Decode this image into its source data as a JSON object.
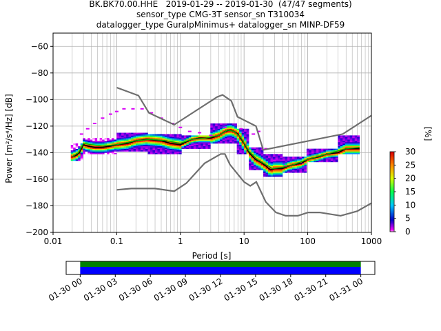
{
  "titles": [
    "BK.BK70.00.HHE   2019-01-29 -- 2019-01-30  (47/47 segments)",
    "sensor_type CMG-3T sensor_sn T310034",
    "datalogger_type GuralpMinimus+ datalogger_sn MINP-DF59"
  ],
  "colors": {
    "model": "#6e6e6e",
    "mode": "#000000",
    "mean": "#00b000",
    "grid": "#b0b0b0",
    "avail_good": "#008000",
    "avail_data": "#0000ff"
  },
  "chart_data": [
    {
      "type": "heatmap",
      "xlabel": "Period [s]",
      "ylabel": "Power [m²/s⁴/Hz] [dB]",
      "x_scale": "log",
      "xlim": [
        0.01,
        1000
      ],
      "ylim": [
        -200,
        -50
      ],
      "xticks": [
        {
          "v": 0.01,
          "label": "0.01"
        },
        {
          "v": 0.1,
          "label": "0.1"
        },
        {
          "v": 1,
          "label": "1"
        },
        {
          "v": 10,
          "label": "10"
        },
        {
          "v": 100,
          "label": "100"
        },
        {
          "v": 1000,
          "label": "1000"
        }
      ],
      "yticks": [
        {
          "v": -60,
          "label": "−60"
        },
        {
          "v": -80,
          "label": "−80"
        },
        {
          "v": -100,
          "label": "−100"
        },
        {
          "v": -120,
          "label": "−120"
        },
        {
          "v": -140,
          "label": "−140"
        },
        {
          "v": -160,
          "label": "−160"
        },
        {
          "v": -180,
          "label": "−180"
        },
        {
          "v": -200,
          "label": "−200"
        }
      ],
      "grid": true,
      "colorbar": {
        "label": "[%]",
        "range": [
          0,
          30
        ],
        "ticks": [
          {
            "v": 0,
            "label": "0"
          },
          {
            "v": 5,
            "label": "5"
          },
          {
            "v": 10,
            "label": "10"
          },
          {
            "v": 15,
            "label": "15"
          },
          {
            "v": 20,
            "label": "20"
          },
          {
            "v": 25,
            "label": "25"
          },
          {
            "v": 30,
            "label": "30"
          }
        ]
      },
      "noise_models": {
        "high": [
          [
            0.1,
            -91
          ],
          [
            0.22,
            -97
          ],
          [
            0.32,
            -110
          ],
          [
            0.8,
            -119
          ],
          [
            3.8,
            -98
          ],
          [
            4.6,
            -96.5
          ],
          [
            6.3,
            -101
          ],
          [
            7.9,
            -113
          ],
          [
            15.4,
            -120
          ],
          [
            20,
            -138
          ],
          [
            354.8,
            -126
          ],
          [
            1000,
            -112
          ]
        ],
        "low": [
          [
            0.1,
            -168
          ],
          [
            0.17,
            -167
          ],
          [
            0.4,
            -167
          ],
          [
            0.8,
            -169
          ],
          [
            1.24,
            -163
          ],
          [
            2.4,
            -148
          ],
          [
            4.3,
            -141
          ],
          [
            5,
            -141
          ],
          [
            6,
            -149
          ],
          [
            10,
            -162
          ],
          [
            12.5,
            -165
          ],
          [
            15.6,
            -162
          ],
          [
            21.9,
            -177
          ],
          [
            31.6,
            -185
          ],
          [
            45,
            -187.5
          ],
          [
            70,
            -187.5
          ],
          [
            101,
            -185
          ],
          [
            154,
            -185
          ],
          [
            328,
            -187.5
          ],
          [
            600,
            -184
          ],
          [
            1000,
            -178
          ]
        ]
      },
      "mode_curve": [
        [
          0.02,
          -143
        ],
        [
          0.023,
          -142
        ],
        [
          0.026,
          -140
        ],
        [
          0.03,
          -134
        ],
        [
          0.035,
          -135
        ],
        [
          0.045,
          -136
        ],
        [
          0.06,
          -136
        ],
        [
          0.08,
          -135
        ],
        [
          0.1,
          -134
        ],
        [
          0.15,
          -133
        ],
        [
          0.2,
          -131
        ],
        [
          0.3,
          -130
        ],
        [
          0.5,
          -131
        ],
        [
          0.7,
          -133
        ],
        [
          1,
          -134
        ],
        [
          1.5,
          -130
        ],
        [
          2,
          -129
        ],
        [
          3,
          -129
        ],
        [
          4,
          -127
        ],
        [
          5,
          -124
        ],
        [
          6,
          -123
        ],
        [
          7,
          -124
        ],
        [
          8,
          -126
        ],
        [
          10,
          -133
        ],
        [
          12,
          -140
        ],
        [
          15,
          -145
        ],
        [
          18,
          -147
        ],
        [
          22,
          -150
        ],
        [
          26,
          -153
        ],
        [
          30,
          -152
        ],
        [
          40,
          -152
        ],
        [
          50,
          -150
        ],
        [
          60,
          -149
        ],
        [
          80,
          -148
        ],
        [
          100,
          -145
        ],
        [
          150,
          -143
        ],
        [
          200,
          -141
        ],
        [
          300,
          -140
        ],
        [
          400,
          -137
        ],
        [
          500,
          -137
        ],
        [
          650,
          -137
        ]
      ],
      "mean_curve": [
        [
          0.02,
          -143
        ],
        [
          0.025,
          -140
        ],
        [
          0.03,
          -133
        ],
        [
          0.04,
          -134
        ],
        [
          0.06,
          -135
        ],
        [
          0.1,
          -134
        ],
        [
          0.2,
          -131
        ],
        [
          0.35,
          -130
        ],
        [
          0.6,
          -131
        ],
        [
          1,
          -133
        ],
        [
          1.5,
          -130
        ],
        [
          2.5,
          -129
        ],
        [
          4,
          -127
        ],
        [
          5.5,
          -123
        ],
        [
          7,
          -124
        ],
        [
          9,
          -129
        ],
        [
          12,
          -139
        ],
        [
          16,
          -145
        ],
        [
          22,
          -149
        ],
        [
          28,
          -152
        ],
        [
          40,
          -151
        ],
        [
          60,
          -149
        ],
        [
          100,
          -145
        ],
        [
          200,
          -141
        ],
        [
          400,
          -137
        ],
        [
          650,
          -136
        ]
      ],
      "psd_bands": [
        [
          0.019,
          0.03,
          -146,
          -133
        ],
        [
          0.03,
          0.1,
          -141,
          -129
        ],
        [
          0.1,
          0.3,
          -139,
          -125
        ],
        [
          0.3,
          1.0,
          -141,
          -126
        ],
        [
          1.0,
          3.0,
          -137,
          -127
        ],
        [
          3.0,
          8.0,
          -133,
          -118
        ],
        [
          8.0,
          12.0,
          -141,
          -122
        ],
        [
          12.0,
          20.0,
          -153,
          -136
        ],
        [
          20.0,
          40.0,
          -158,
          -141
        ],
        [
          40.0,
          100.0,
          -155,
          -143
        ],
        [
          100.0,
          300.0,
          -147,
          -137
        ],
        [
          300.0,
          650.0,
          -141,
          -127
        ]
      ],
      "sparse_cloud": [
        [
          0.028,
          -126
        ],
        [
          0.035,
          -122
        ],
        [
          0.045,
          -118
        ],
        [
          0.06,
          -114
        ],
        [
          0.08,
          -111
        ],
        [
          0.1,
          -109
        ],
        [
          0.13,
          -107
        ],
        [
          0.18,
          -107
        ],
        [
          0.25,
          -107
        ],
        [
          0.35,
          -110
        ],
        [
          0.5,
          -114
        ],
        [
          0.75,
          -118
        ],
        [
          1.0,
          -121
        ],
        [
          1.4,
          -124
        ],
        [
          2.0,
          -125
        ],
        [
          3.0,
          -127
        ],
        [
          5,
          -121
        ],
        [
          9,
          -122
        ],
        [
          14,
          -126
        ],
        [
          17,
          -124
        ],
        [
          22,
          -137
        ],
        [
          30,
          -146
        ],
        [
          45,
          -150
        ],
        [
          80,
          -148
        ]
      ]
    },
    {
      "type": "table",
      "name": "availability",
      "xticks": [
        {
          "v": 0,
          "label": "01-30 00"
        },
        {
          "v": 3,
          "label": "01-30 03"
        },
        {
          "v": 6,
          "label": "01-30 06"
        },
        {
          "v": 9,
          "label": "01-30 09"
        },
        {
          "v": 12,
          "label": "01-30 12"
        },
        {
          "v": 15,
          "label": "01-30 15"
        },
        {
          "v": 18,
          "label": "01-30 18"
        },
        {
          "v": 21,
          "label": "01-30 21"
        },
        {
          "v": 24,
          "label": "01-31 00"
        }
      ],
      "xlim_hours": [
        -1.2,
        25.2
      ],
      "data_range_hours": [
        0,
        24
      ]
    }
  ]
}
